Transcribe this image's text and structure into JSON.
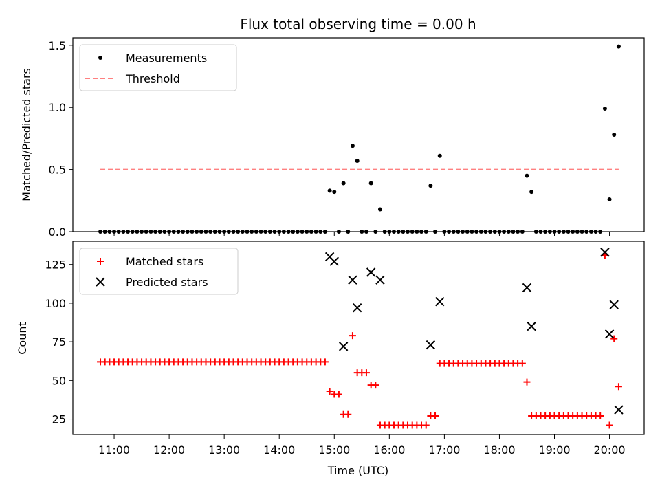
{
  "figure": {
    "title": "Flux total observing time = 0.00 h",
    "xlabel": "Time (UTC)"
  },
  "chart_data": [
    {
      "type": "scatter",
      "panel": "top",
      "ylabel": "Matched/Predicted stars",
      "ylim": [
        0.0,
        1.56
      ],
      "yticks": [
        0.0,
        0.5,
        1.0,
        1.5
      ],
      "ytick_labels": [
        "0.0",
        "0.5",
        "1.0",
        "1.5"
      ],
      "xlim_hours": [
        10.25,
        20.63
      ],
      "legend": "top-left",
      "series": [
        {
          "name": "Measurements",
          "color": "#000000",
          "marker": "dot",
          "points": [
            [
              10.75,
              0
            ],
            [
              10.833,
              0
            ],
            [
              10.917,
              0
            ],
            [
              11.0,
              0
            ],
            [
              11.083,
              0
            ],
            [
              11.167,
              0
            ],
            [
              11.25,
              0
            ],
            [
              11.333,
              0
            ],
            [
              11.417,
              0
            ],
            [
              11.5,
              0
            ],
            [
              11.583,
              0
            ],
            [
              11.667,
              0
            ],
            [
              11.75,
              0
            ],
            [
              11.833,
              0
            ],
            [
              11.917,
              0
            ],
            [
              12.0,
              0
            ],
            [
              12.083,
              0
            ],
            [
              12.167,
              0
            ],
            [
              12.25,
              0
            ],
            [
              12.333,
              0
            ],
            [
              12.417,
              0
            ],
            [
              12.5,
              0
            ],
            [
              12.583,
              0
            ],
            [
              12.667,
              0
            ],
            [
              12.75,
              0
            ],
            [
              12.833,
              0
            ],
            [
              12.917,
              0
            ],
            [
              13.0,
              0
            ],
            [
              13.083,
              0
            ],
            [
              13.167,
              0
            ],
            [
              13.25,
              0
            ],
            [
              13.333,
              0
            ],
            [
              13.417,
              0
            ],
            [
              13.5,
              0
            ],
            [
              13.583,
              0
            ],
            [
              13.667,
              0
            ],
            [
              13.75,
              0
            ],
            [
              13.833,
              0
            ],
            [
              13.917,
              0
            ],
            [
              14.0,
              0
            ],
            [
              14.083,
              0
            ],
            [
              14.167,
              0
            ],
            [
              14.25,
              0
            ],
            [
              14.333,
              0
            ],
            [
              14.417,
              0
            ],
            [
              14.5,
              0
            ],
            [
              14.583,
              0
            ],
            [
              14.667,
              0
            ],
            [
              14.75,
              0
            ],
            [
              14.833,
              0
            ],
            [
              14.917,
              0.33
            ],
            [
              15.0,
              0.32
            ],
            [
              15.083,
              0
            ],
            [
              15.167,
              0.39
            ],
            [
              15.25,
              0
            ],
            [
              15.333,
              0.69
            ],
            [
              15.417,
              0.57
            ],
            [
              15.5,
              0
            ],
            [
              15.583,
              0
            ],
            [
              15.667,
              0.39
            ],
            [
              15.75,
              0
            ],
            [
              15.833,
              0.18
            ],
            [
              15.917,
              0
            ],
            [
              16.0,
              0
            ],
            [
              16.083,
              0
            ],
            [
              16.167,
              0
            ],
            [
              16.25,
              0
            ],
            [
              16.333,
              0
            ],
            [
              16.417,
              0
            ],
            [
              16.5,
              0
            ],
            [
              16.583,
              0
            ],
            [
              16.667,
              0
            ],
            [
              16.75,
              0.37
            ],
            [
              16.833,
              0
            ],
            [
              16.917,
              0.61
            ],
            [
              17.0,
              0
            ],
            [
              17.083,
              0
            ],
            [
              17.167,
              0
            ],
            [
              17.25,
              0
            ],
            [
              17.333,
              0
            ],
            [
              17.417,
              0
            ],
            [
              17.5,
              0
            ],
            [
              17.583,
              0
            ],
            [
              17.667,
              0
            ],
            [
              17.75,
              0
            ],
            [
              17.833,
              0
            ],
            [
              17.917,
              0
            ],
            [
              18.0,
              0
            ],
            [
              18.083,
              0
            ],
            [
              18.167,
              0
            ],
            [
              18.25,
              0
            ],
            [
              18.333,
              0
            ],
            [
              18.417,
              0
            ],
            [
              18.5,
              0.45
            ],
            [
              18.583,
              0.32
            ],
            [
              18.667,
              0
            ],
            [
              18.75,
              0
            ],
            [
              18.833,
              0
            ],
            [
              18.917,
              0
            ],
            [
              19.0,
              0
            ],
            [
              19.083,
              0
            ],
            [
              19.167,
              0
            ],
            [
              19.25,
              0
            ],
            [
              19.333,
              0
            ],
            [
              19.417,
              0
            ],
            [
              19.5,
              0
            ],
            [
              19.583,
              0
            ],
            [
              19.667,
              0
            ],
            [
              19.75,
              0
            ],
            [
              19.833,
              0
            ],
            [
              19.917,
              0.99
            ],
            [
              20.0,
              0.26
            ],
            [
              20.083,
              0.78
            ],
            [
              20.167,
              1.49
            ]
          ]
        },
        {
          "name": "Threshold",
          "color": "#ff8080",
          "marker": "dashed-line",
          "points": [
            [
              10.75,
              0.5
            ],
            [
              20.167,
              0.5
            ]
          ]
        }
      ]
    },
    {
      "type": "scatter",
      "panel": "bottom",
      "ylabel": "Count",
      "ylim": [
        15.0,
        140.0
      ],
      "yticks": [
        25,
        50,
        75,
        100,
        125
      ],
      "ytick_labels": [
        "25",
        "50",
        "75",
        "100",
        "125"
      ],
      "xlim_hours": [
        10.25,
        20.63
      ],
      "xticks_hours": [
        11,
        12,
        13,
        14,
        15,
        16,
        17,
        18,
        19,
        20
      ],
      "xtick_labels": [
        "11:00",
        "12:00",
        "13:00",
        "14:00",
        "15:00",
        "16:00",
        "17:00",
        "18:00",
        "19:00",
        "20:00"
      ],
      "legend": "top-left",
      "series": [
        {
          "name": "Matched stars",
          "color": "#ff0000",
          "marker": "plus",
          "points": [
            [
              10.75,
              62
            ],
            [
              10.833,
              62
            ],
            [
              10.917,
              62
            ],
            [
              11.0,
              62
            ],
            [
              11.083,
              62
            ],
            [
              11.167,
              62
            ],
            [
              11.25,
              62
            ],
            [
              11.333,
              62
            ],
            [
              11.417,
              62
            ],
            [
              11.5,
              62
            ],
            [
              11.583,
              62
            ],
            [
              11.667,
              62
            ],
            [
              11.75,
              62
            ],
            [
              11.833,
              62
            ],
            [
              11.917,
              62
            ],
            [
              12.0,
              62
            ],
            [
              12.083,
              62
            ],
            [
              12.167,
              62
            ],
            [
              12.25,
              62
            ],
            [
              12.333,
              62
            ],
            [
              12.417,
              62
            ],
            [
              12.5,
              62
            ],
            [
              12.583,
              62
            ],
            [
              12.667,
              62
            ],
            [
              12.75,
              62
            ],
            [
              12.833,
              62
            ],
            [
              12.917,
              62
            ],
            [
              13.0,
              62
            ],
            [
              13.083,
              62
            ],
            [
              13.167,
              62
            ],
            [
              13.25,
              62
            ],
            [
              13.333,
              62
            ],
            [
              13.417,
              62
            ],
            [
              13.5,
              62
            ],
            [
              13.583,
              62
            ],
            [
              13.667,
              62
            ],
            [
              13.75,
              62
            ],
            [
              13.833,
              62
            ],
            [
              13.917,
              62
            ],
            [
              14.0,
              62
            ],
            [
              14.083,
              62
            ],
            [
              14.167,
              62
            ],
            [
              14.25,
              62
            ],
            [
              14.333,
              62
            ],
            [
              14.417,
              62
            ],
            [
              14.5,
              62
            ],
            [
              14.583,
              62
            ],
            [
              14.667,
              62
            ],
            [
              14.75,
              62
            ],
            [
              14.833,
              62
            ],
            [
              14.917,
              43
            ],
            [
              15.0,
              41
            ],
            [
              15.083,
              41
            ],
            [
              15.167,
              28
            ],
            [
              15.25,
              28
            ],
            [
              15.333,
              79
            ],
            [
              15.417,
              55
            ],
            [
              15.5,
              55
            ],
            [
              15.583,
              55
            ],
            [
              15.667,
              47
            ],
            [
              15.75,
              47
            ],
            [
              15.833,
              21
            ],
            [
              15.917,
              21
            ],
            [
              16.0,
              21
            ],
            [
              16.083,
              21
            ],
            [
              16.167,
              21
            ],
            [
              16.25,
              21
            ],
            [
              16.333,
              21
            ],
            [
              16.417,
              21
            ],
            [
              16.5,
              21
            ],
            [
              16.583,
              21
            ],
            [
              16.667,
              21
            ],
            [
              16.75,
              27
            ],
            [
              16.833,
              27
            ],
            [
              16.917,
              61
            ],
            [
              17.0,
              61
            ],
            [
              17.083,
              61
            ],
            [
              17.167,
              61
            ],
            [
              17.25,
              61
            ],
            [
              17.333,
              61
            ],
            [
              17.417,
              61
            ],
            [
              17.5,
              61
            ],
            [
              17.583,
              61
            ],
            [
              17.667,
              61
            ],
            [
              17.75,
              61
            ],
            [
              17.833,
              61
            ],
            [
              17.917,
              61
            ],
            [
              18.0,
              61
            ],
            [
              18.083,
              61
            ],
            [
              18.167,
              61
            ],
            [
              18.25,
              61
            ],
            [
              18.333,
              61
            ],
            [
              18.417,
              61
            ],
            [
              18.5,
              49
            ],
            [
              18.583,
              27
            ],
            [
              18.667,
              27
            ],
            [
              18.75,
              27
            ],
            [
              18.833,
              27
            ],
            [
              18.917,
              27
            ],
            [
              19.0,
              27
            ],
            [
              19.083,
              27
            ],
            [
              19.167,
              27
            ],
            [
              19.25,
              27
            ],
            [
              19.333,
              27
            ],
            [
              19.417,
              27
            ],
            [
              19.5,
              27
            ],
            [
              19.583,
              27
            ],
            [
              19.667,
              27
            ],
            [
              19.75,
              27
            ],
            [
              19.833,
              27
            ],
            [
              19.917,
              131
            ],
            [
              20.0,
              21
            ],
            [
              20.083,
              77
            ],
            [
              20.167,
              46
            ]
          ]
        },
        {
          "name": "Predicted stars",
          "color": "#000000",
          "marker": "x",
          "points": [
            [
              14.917,
              130
            ],
            [
              15.0,
              127
            ],
            [
              15.167,
              72
            ],
            [
              15.333,
              115
            ],
            [
              15.417,
              97
            ],
            [
              15.667,
              120
            ],
            [
              15.833,
              115
            ],
            [
              16.75,
              73
            ],
            [
              16.917,
              101
            ],
            [
              18.5,
              110
            ],
            [
              18.583,
              85
            ],
            [
              19.917,
              133
            ],
            [
              20.0,
              80
            ],
            [
              20.083,
              99
            ],
            [
              20.167,
              31
            ]
          ]
        }
      ]
    }
  ]
}
